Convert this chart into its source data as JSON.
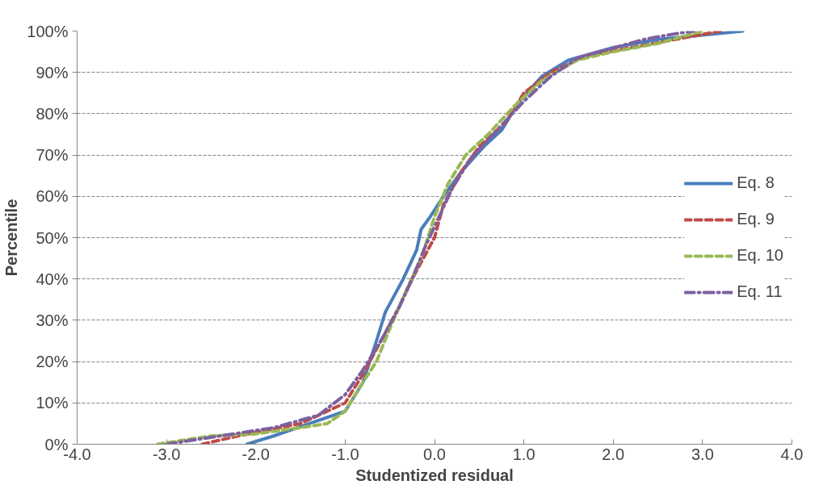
{
  "chart_data": {
    "type": "line",
    "xlabel": "Studentized residual",
    "ylabel": "Percentile",
    "xlim": [
      -4,
      4
    ],
    "ylim": [
      0,
      100
    ],
    "xticks": [
      {
        "value": -4,
        "label": "-4.0"
      },
      {
        "value": -3,
        "label": "-3.0"
      },
      {
        "value": -2,
        "label": "-2.0"
      },
      {
        "value": -1,
        "label": "-1.0"
      },
      {
        "value": 0,
        "label": "0.0"
      },
      {
        "value": 1,
        "label": "1.0"
      },
      {
        "value": 2,
        "label": "2.0"
      },
      {
        "value": 3,
        "label": "3.0"
      },
      {
        "value": 4,
        "label": "4.0"
      }
    ],
    "yticks": [
      {
        "value": 0,
        "label": "0%"
      },
      {
        "value": 10,
        "label": "10%"
      },
      {
        "value": 20,
        "label": "20%"
      },
      {
        "value": 30,
        "label": "30%"
      },
      {
        "value": 40,
        "label": "40%"
      },
      {
        "value": 50,
        "label": "50%"
      },
      {
        "value": 60,
        "label": "60%"
      },
      {
        "value": 70,
        "label": "70%"
      },
      {
        "value": 80,
        "label": "80%"
      },
      {
        "value": 90,
        "label": "90%"
      },
      {
        "value": 100,
        "label": "100%"
      }
    ],
    "grid": "y",
    "legend": "right",
    "marker": "none",
    "series": [
      {
        "name": "Eq. 8",
        "color": "#4a7ebb",
        "line_style": "solid",
        "x": [
          -2.1,
          -1.8,
          -1.4,
          -1.0,
          -0.8,
          -0.65,
          -0.55,
          -0.35,
          -0.2,
          -0.15,
          -0.05,
          0.1,
          0.3,
          0.55,
          0.75,
          0.95,
          1.2,
          1.5,
          2.0,
          2.5,
          3.0,
          3.45
        ],
        "values": [
          0,
          2,
          5,
          8,
          15,
          25,
          32,
          40,
          47,
          52,
          55,
          60,
          66,
          72,
          76,
          83,
          89,
          93,
          96,
          98,
          99,
          100
        ]
      },
      {
        "name": "Eq. 9",
        "color": "#be4b48",
        "line_style": "dashed",
        "x": [
          -2.6,
          -2.2,
          -1.5,
          -1.0,
          -0.8,
          -0.6,
          -0.4,
          -0.25,
          -0.1,
          0.0,
          0.1,
          0.3,
          0.5,
          0.8,
          1.0,
          1.3,
          1.7,
          2.2,
          2.7,
          3.2
        ],
        "values": [
          0,
          2,
          5,
          10,
          17,
          25,
          33,
          40,
          46,
          50,
          58,
          66,
          72,
          78,
          85,
          90,
          94,
          96,
          98,
          100
        ]
      },
      {
        "name": "Eq. 10",
        "color": "#98b954",
        "line_style": "dashed",
        "x": [
          -3.1,
          -2.5,
          -2.0,
          -1.5,
          -1.2,
          -1.0,
          -0.8,
          -0.65,
          -0.5,
          -0.3,
          -0.15,
          0.0,
          0.15,
          0.35,
          0.6,
          0.9,
          1.2,
          1.6,
          2.0,
          2.5,
          3.0
        ],
        "values": [
          0,
          2,
          2.5,
          4,
          5,
          8,
          15,
          20,
          28,
          38,
          45,
          55,
          63,
          70,
          75,
          82,
          88,
          93,
          95,
          97,
          100
        ]
      },
      {
        "name": "Eq. 11",
        "color": "#7d60a0",
        "line_style": "dashdot",
        "x": [
          -3.0,
          -2.4,
          -1.8,
          -1.3,
          -1.0,
          -0.8,
          -0.6,
          -0.4,
          -0.25,
          -0.1,
          0.05,
          0.2,
          0.4,
          0.7,
          1.0,
          1.3,
          1.6,
          2.1,
          2.35,
          2.6,
          2.9
        ],
        "values": [
          0,
          2,
          4,
          7,
          12,
          18,
          25,
          33,
          40,
          48,
          55,
          62,
          69,
          76,
          83,
          89,
          93.5,
          96.5,
          98,
          99,
          100
        ]
      }
    ]
  }
}
